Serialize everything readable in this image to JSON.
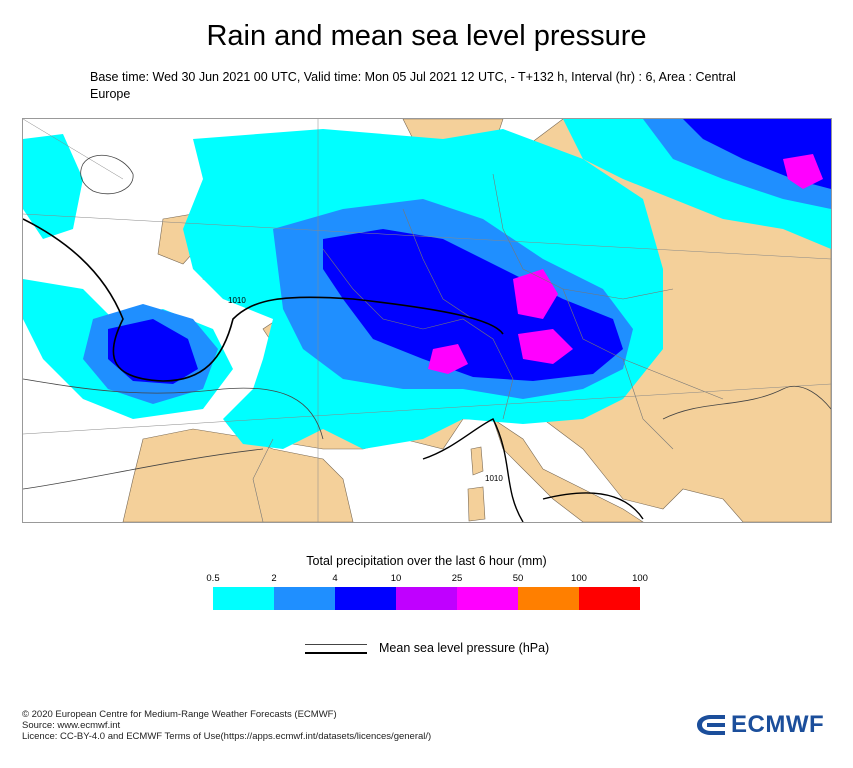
{
  "title": "Rain and mean sea level pressure",
  "subtitle": "Base time: Wed 30 Jun 2021 00 UTC, Valid time: Mon 05 Jul 2021 12 UTC, - T+132 h, Interval (hr) : 6, Area : Central Europe",
  "map": {
    "isobar_labels": [
      "1010",
      "1010"
    ],
    "colors": {
      "land": "#f4d09a",
      "sea": "#ffffff",
      "rain_light": "#00ffff",
      "rain_moderate": "#1f8fff",
      "rain_heavy": "#0000ff",
      "rain_very_heavy": "#ff00ff"
    }
  },
  "legend": {
    "title": "Total precipitation over the last 6 hour (mm)",
    "ticks": [
      "0.5",
      "2",
      "4",
      "10",
      "25",
      "50",
      "100",
      "100"
    ],
    "colors": [
      "#00ffff",
      "#1f8fff",
      "#0000ff",
      "#c000ff",
      "#ff00ff",
      "#ff7f00",
      "#ff0000"
    ]
  },
  "msl_legend": {
    "label": "Mean sea level pressure (hPa)"
  },
  "footer": {
    "copyright": "© 2020 European Centre for Medium-Range Weather Forecasts (ECMWF)",
    "source": "Source: www.ecmwf.int",
    "licence": "Licence: CC-BY-4.0 and ECMWF Terms of Use(https://apps.ecmwf.int/datasets/licences/general/)"
  },
  "logo": {
    "text": "ECMWF",
    "color": "#1b4e9b"
  }
}
